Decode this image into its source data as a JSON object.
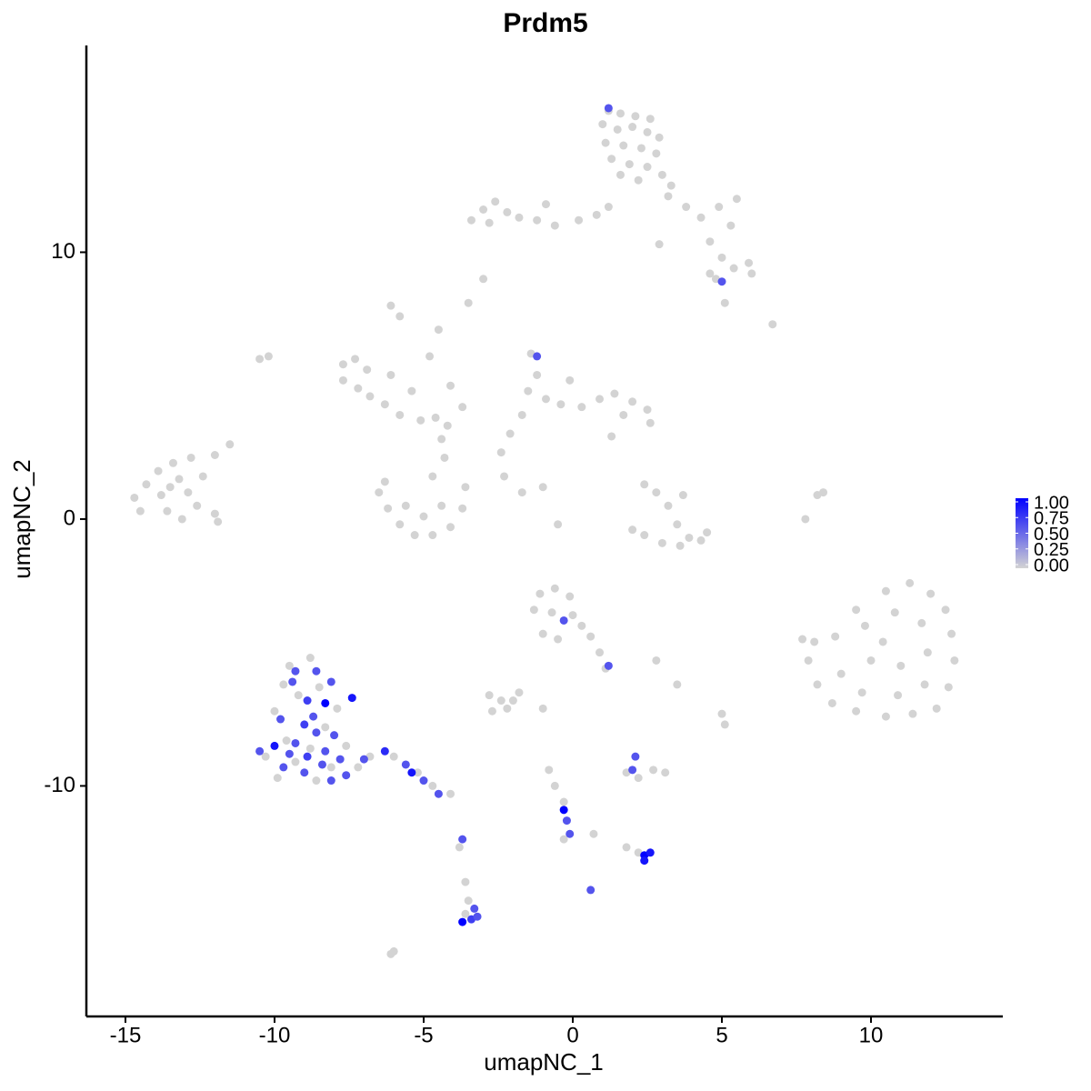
{
  "chart_data": {
    "type": "scatter",
    "title": "Prdm5",
    "x_label": "umapNC_1",
    "y_label": "umapNC_2",
    "xlim": [
      -16.31,
      14.42
    ],
    "ylim": [
      -18.64,
      17.75
    ],
    "xticks": [
      -15,
      -10,
      -5,
      0,
      5,
      10
    ],
    "yticks": [
      -10,
      0,
      10
    ],
    "color_low": "#d3d3d3",
    "color_high": "#0000ff",
    "color_lim": [
      0,
      1
    ],
    "color_ticks": [
      {
        "value": 0,
        "label": "0.00"
      },
      {
        "value": 0.25,
        "label": "0.25"
      },
      {
        "value": 0.5,
        "label": "0.50"
      },
      {
        "value": 0.75,
        "label": "0.75"
      },
      {
        "value": 1,
        "label": "1.00"
      }
    ],
    "x": [
      1.2,
      1.6,
      2.1,
      2.6,
      1.0,
      1.5,
      2.0,
      2.5,
      2.9,
      1.1,
      1.7,
      2.3,
      2.8,
      1.3,
      1.9,
      2.5,
      1.6,
      2.2,
      3.0,
      3.3,
      1.2,
      -3.4,
      -3.0,
      -2.6,
      -2.2,
      -1.8,
      -1.2,
      -0.6,
      0.2,
      0.8,
      -2.8,
      -0.9,
      1.2,
      3.2,
      3.8,
      4.3,
      4.9,
      5.5,
      5.3,
      4.6,
      5.0,
      4.8,
      5.4,
      5.9,
      6.0,
      4.6,
      2.9,
      5.0,
      5.1,
      6.7,
      -14.7,
      -14.3,
      -13.9,
      -13.4,
      -12.8,
      -13.2,
      -13.8,
      -14.5,
      -13.6,
      -12.9,
      -12.4,
      -12.6,
      -12.0,
      -11.9,
      -13.1,
      -12.0,
      -11.5,
      -13.5,
      -7.7,
      -7.3,
      -7.7,
      -7.2,
      -6.8,
      -6.3,
      -5.8,
      -5.1,
      -4.6,
      -4.2,
      -5.4,
      -6.9,
      -6.1,
      -4.8,
      -4.5,
      -4.1,
      -3.7,
      -10.5,
      -6.5,
      -6.2,
      -5.8,
      -5.3,
      -4.7,
      -4.1,
      -3.7,
      -3.6,
      -5.0,
      -4.4,
      -5.6,
      -6.3,
      -4.7,
      -4.3,
      -4.4,
      -1.4,
      -1.2,
      -1.5,
      -0.9,
      -0.4,
      0.3,
      0.9,
      1.4,
      2.0,
      2.5,
      2.6,
      1.7,
      -0.1,
      -1.7,
      -2.1,
      -2.4,
      -2.3,
      -1.7,
      -1.2,
      2.4,
      2.8,
      3.2,
      3.5,
      3.9,
      3.6,
      3.0,
      2.4,
      2.0,
      4.3,
      4.5,
      3.7,
      9.5,
      10.5,
      11.3,
      12.0,
      12.5,
      12.7,
      12.8,
      12.6,
      12.2,
      11.4,
      10.5,
      9.5,
      8.7,
      8.2,
      7.9,
      8.1,
      8.8,
      9.8,
      10.8,
      11.7,
      11.9,
      11.0,
      10.0,
      9.0,
      9.7,
      10.9,
      11.8,
      10.4,
      7.7,
      -1.1,
      -0.6,
      -0.1,
      -1.3,
      -0.7,
      0.0,
      0.3,
      -1.0,
      -0.5,
      0.6,
      0.9,
      1.1,
      2.8,
      3.5,
      5.0,
      5.1,
      -0.3,
      1.2,
      -9.5,
      -8.8,
      -9.7,
      -9.2,
      -8.5,
      -7.9,
      -10.0,
      -8.3,
      -9.6,
      -8.8,
      -7.6,
      -10.3,
      -9.3,
      -8.1,
      -9.9,
      -8.6,
      -7.2,
      -6.8,
      -6.0,
      -5.2,
      -4.7,
      -4.1,
      -9.3,
      -8.6,
      -8.9,
      -8.3,
      -7.4,
      -9.8,
      -9.0,
      -8.6,
      -8.0,
      -10.0,
      -9.3,
      -8.9,
      -8.3,
      -7.8,
      -10.5,
      -9.7,
      -9.0,
      -8.4,
      -7.6,
      -7.0,
      -6.3,
      -5.6,
      -5.4,
      -5.0,
      -4.5,
      -9.4,
      -8.1,
      -8.7,
      -9.5,
      -8.1,
      -2.8,
      -2.4,
      -2.0,
      -1.8,
      -2.7,
      -2.2,
      -1.0,
      1.8,
      2.2,
      2.7,
      3.1,
      2.0,
      2.1,
      -0.8,
      -0.6,
      -0.3,
      -0.3,
      -0.2,
      -0.1,
      -0.3,
      0.7,
      1.8,
      2.2,
      2.4,
      2.4,
      2.6,
      -3.7,
      -3.8,
      -3.6,
      -3.5,
      -3.3,
      -3.4,
      -3.7,
      -3.2,
      -3.6,
      0.6,
      -6.0,
      -6.1,
      -3.0,
      -3.5,
      -1.0,
      -0.5,
      1.3,
      7.8,
      8.2,
      8.4,
      -6.1,
      -5.8,
      -10.2
    ],
    "y": [
      15.3,
      15.2,
      15.1,
      15.0,
      14.8,
      14.6,
      14.7,
      14.5,
      14.3,
      14.1,
      14.0,
      13.9,
      13.7,
      13.5,
      13.3,
      13.2,
      12.9,
      12.7,
      12.9,
      12.5,
      15.4,
      11.2,
      11.6,
      11.9,
      11.5,
      11.3,
      11.2,
      11.0,
      11.2,
      11.4,
      11.1,
      11.8,
      11.7,
      12.1,
      11.7,
      11.3,
      11.7,
      12.0,
      11.0,
      10.4,
      9.8,
      9.0,
      9.4,
      9.6,
      9.2,
      9.2,
      10.3,
      8.9,
      8.1,
      7.3,
      0.8,
      1.3,
      1.8,
      2.1,
      2.3,
      1.5,
      0.9,
      0.3,
      0.3,
      1.0,
      1.6,
      0.5,
      0.2,
      -0.1,
      0.0,
      2.4,
      2.8,
      1.2,
      5.8,
      6.0,
      5.2,
      4.9,
      4.6,
      4.3,
      3.9,
      3.7,
      3.8,
      3.5,
      4.8,
      5.6,
      5.4,
      6.1,
      7.1,
      5.0,
      4.2,
      6.0,
      1.0,
      0.4,
      -0.2,
      -0.6,
      -0.6,
      -0.3,
      0.4,
      1.2,
      0.1,
      0.5,
      0.5,
      1.4,
      1.6,
      2.3,
      3.0,
      6.2,
      5.4,
      4.8,
      4.5,
      4.3,
      4.2,
      4.5,
      4.7,
      4.4,
      4.1,
      3.6,
      3.9,
      5.2,
      3.9,
      3.2,
      2.5,
      1.6,
      1.0,
      6.1,
      1.3,
      1.0,
      0.5,
      -0.2,
      -0.7,
      -1.0,
      -0.9,
      -0.6,
      -0.4,
      -0.8,
      -0.5,
      0.9,
      -3.4,
      -2.7,
      -2.4,
      -2.8,
      -3.4,
      -4.3,
      -5.3,
      -6.3,
      -7.1,
      -7.3,
      -7.4,
      -7.2,
      -6.9,
      -6.2,
      -5.3,
      -4.6,
      -4.4,
      -4.0,
      -3.5,
      -3.9,
      -5.0,
      -5.5,
      -5.3,
      -5.8,
      -6.5,
      -6.6,
      -6.2,
      -4.6,
      -4.5,
      -2.8,
      -2.6,
      -2.9,
      -3.4,
      -3.5,
      -3.6,
      -4.0,
      -4.3,
      -4.5,
      -4.4,
      -5.0,
      -5.6,
      -5.3,
      -6.2,
      -7.3,
      -7.7,
      -3.8,
      -5.5,
      -5.5,
      -5.2,
      -6.2,
      -6.6,
      -6.3,
      -7.1,
      -7.2,
      -7.8,
      -8.3,
      -8.6,
      -8.5,
      -8.9,
      -9.1,
      -9.3,
      -9.7,
      -9.8,
      -9.3,
      -8.9,
      -8.9,
      -9.5,
      -10.0,
      -10.3,
      -5.7,
      -5.7,
      -6.8,
      -6.9,
      -6.7,
      -7.5,
      -7.7,
      -8.0,
      -8.1,
      -8.5,
      -8.4,
      -8.9,
      -8.7,
      -9.0,
      -8.7,
      -9.3,
      -9.5,
      -9.2,
      -9.6,
      -9.0,
      -8.7,
      -9.2,
      -9.5,
      -9.8,
      -10.3,
      -6.1,
      -6.1,
      -7.4,
      -8.8,
      -9.8,
      -6.6,
      -6.8,
      -6.8,
      -6.5,
      -7.2,
      -7.1,
      -7.1,
      -9.5,
      -9.7,
      -9.4,
      -9.5,
      -9.4,
      -8.9,
      -9.4,
      -10.0,
      -10.6,
      -10.9,
      -11.3,
      -11.8,
      -12.0,
      -11.8,
      -12.3,
      -12.5,
      -12.6,
      -12.8,
      -12.5,
      -12.0,
      -12.3,
      -13.6,
      -14.3,
      -14.6,
      -15.0,
      -15.1,
      -14.9,
      -14.8,
      -13.9,
      -16.2,
      -16.3,
      9.0,
      8.1,
      1.2,
      -0.2,
      3.1,
      0.0,
      0.9,
      1.0,
      8.0,
      7.6,
      6.1
    ],
    "values": [
      0,
      0,
      0,
      0,
      0,
      0,
      0,
      0,
      0,
      0,
      0,
      0,
      0,
      0,
      0,
      0,
      0,
      0,
      0,
      0,
      0.6,
      0,
      0,
      0,
      0,
      0,
      0,
      0,
      0,
      0,
      0,
      0,
      0,
      0,
      0,
      0,
      0,
      0,
      0,
      0,
      0,
      0,
      0,
      0,
      0,
      0,
      0,
      0.6,
      0,
      0,
      0,
      0,
      0,
      0,
      0,
      0,
      0,
      0,
      0,
      0,
      0,
      0,
      0,
      0,
      0,
      0,
      0,
      0,
      0,
      0,
      0,
      0,
      0,
      0,
      0,
      0,
      0,
      0,
      0,
      0,
      0,
      0,
      0,
      0,
      0,
      0,
      0,
      0,
      0,
      0,
      0,
      0,
      0,
      0,
      0,
      0,
      0,
      0,
      0,
      0,
      0,
      0,
      0,
      0,
      0,
      0,
      0,
      0,
      0,
      0,
      0,
      0,
      0,
      0,
      0,
      0,
      0,
      0,
      0,
      0.6,
      0,
      0,
      0,
      0,
      0,
      0,
      0,
      0,
      0,
      0,
      0,
      0,
      0,
      0,
      0,
      0,
      0,
      0,
      0,
      0,
      0,
      0,
      0,
      0,
      0,
      0,
      0,
      0,
      0,
      0,
      0,
      0,
      0,
      0,
      0,
      0,
      0,
      0,
      0,
      0,
      0,
      0,
      0,
      0,
      0,
      0,
      0,
      0,
      0,
      0,
      0,
      0,
      0,
      0,
      0,
      0,
      0,
      0.6,
      0.6,
      0,
      0,
      0,
      0,
      0,
      0,
      0,
      0,
      0,
      0,
      0,
      0,
      0,
      0,
      0,
      0,
      0,
      0,
      0,
      0,
      0,
      0,
      0.6,
      0.6,
      0.7,
      1.0,
      0.9,
      0.6,
      0.7,
      0.6,
      0.6,
      0.9,
      0.6,
      0.7,
      0.6,
      0.6,
      0.6,
      0.6,
      0.6,
      0.6,
      0.6,
      0.6,
      0.8,
      0.6,
      0.9,
      0.6,
      0.6,
      0.6,
      0.6,
      0.6,
      0.6,
      0.6,
      0,
      0,
      0,
      0,
      0,
      0,
      0,
      0,
      0,
      0,
      0,
      0.6,
      0.6,
      0,
      0,
      0,
      1.0,
      0.6,
      0.6,
      0,
      0,
      0,
      0,
      1.0,
      0.9,
      0.9,
      0.6,
      0,
      0,
      0,
      0.6,
      0.7,
      1.0,
      0.6,
      0,
      0.6,
      0,
      0,
      0,
      0,
      0,
      0,
      0,
      0,
      0,
      0,
      0,
      0,
      0
    ]
  }
}
